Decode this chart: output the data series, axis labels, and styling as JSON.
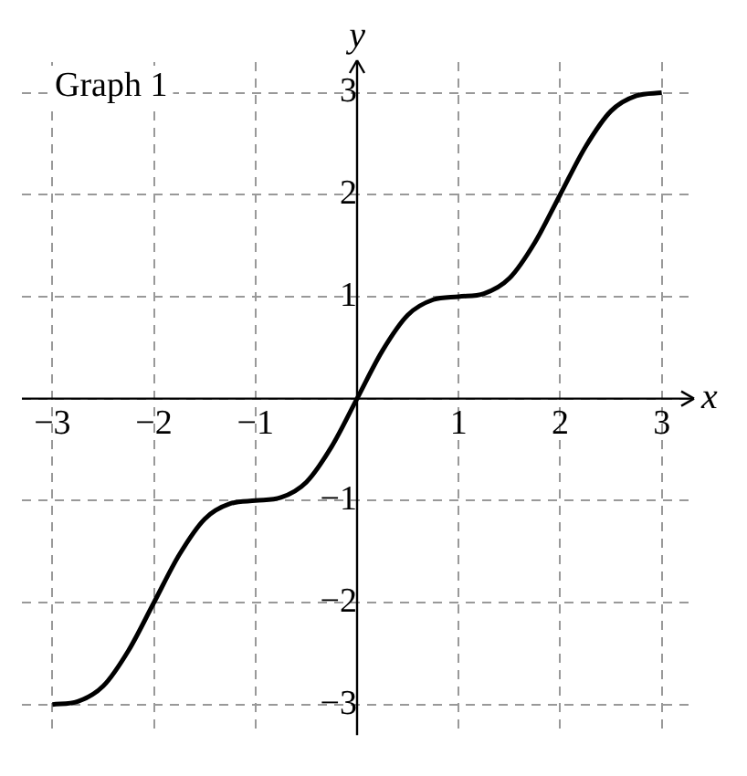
{
  "chart_data": {
    "type": "line",
    "xlabel": "x",
    "ylabel": "y",
    "annotations": [
      "Graph 1"
    ],
    "x": [
      -3,
      -2.75,
      -2.5,
      -2.25,
      -2,
      -1.75,
      -1.5,
      -1.25,
      -1,
      -0.75,
      -0.5,
      -0.25,
      0,
      0.25,
      0.5,
      0.75,
      1,
      1.25,
      1.5,
      1.75,
      2,
      2.25,
      2.5,
      2.75,
      3
    ],
    "series": [
      {
        "color": "#000000",
        "values": [
          -3,
          -2.97,
          -2.82,
          -2.47,
          -2,
          -1.53,
          -1.18,
          -1.03,
          -1,
          -0.97,
          -0.82,
          -0.47,
          0,
          0.47,
          0.82,
          0.97,
          1,
          1.03,
          1.18,
          1.53,
          2,
          2.47,
          2.82,
          2.97,
          3
        ]
      }
    ],
    "xlim": [
      -3.3,
      3.3
    ],
    "ylim": [
      -3.3,
      3.3
    ],
    "xticks": [
      {
        "value": -3,
        "label": "−3"
      },
      {
        "value": -2,
        "label": "−2"
      },
      {
        "value": -1,
        "label": "−1"
      },
      {
        "value": 0,
        "label": null
      },
      1,
      2,
      3
    ],
    "yticks": [
      {
        "value": -3,
        "label": "−3"
      },
      {
        "value": -2,
        "label": "−2"
      },
      {
        "value": -1,
        "label": "−1"
      },
      {
        "value": 0,
        "label": null
      },
      1,
      2,
      3
    ],
    "grid": true,
    "legend": false,
    "marker": "none",
    "line_style": "solid"
  }
}
